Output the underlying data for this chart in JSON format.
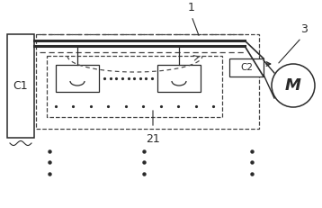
{
  "bg_color": "#ffffff",
  "line_color": "#2a2a2a",
  "dashed_color": "#444444",
  "label_C1": "C1",
  "label_C2": "C2",
  "label_M": "M",
  "label_1": "1",
  "label_21": "21",
  "label_3": "3",
  "figsize": [
    3.58,
    2.31
  ],
  "dpi": 100
}
